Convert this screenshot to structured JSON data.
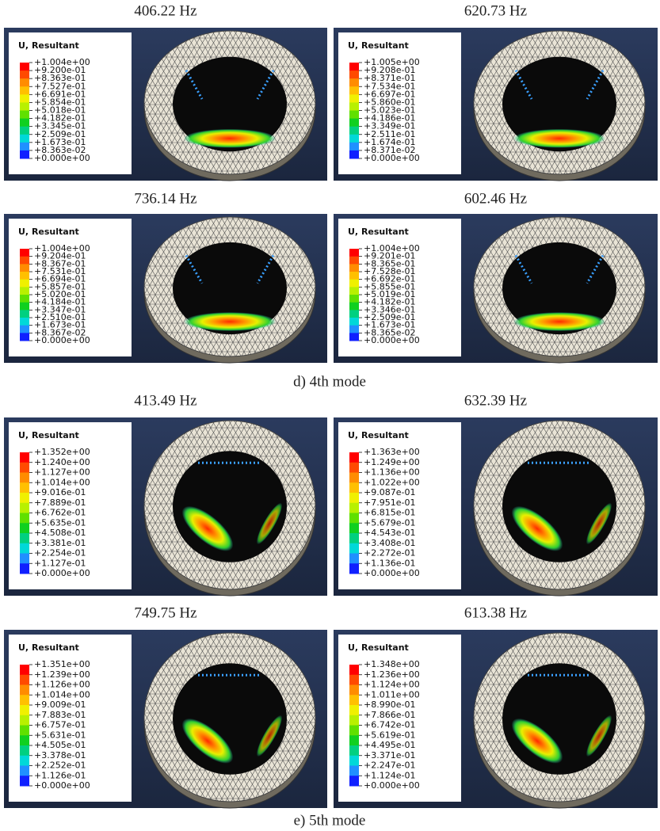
{
  "groups": [
    {
      "caption": "d) 4th mode",
      "panels": [
        {
          "frequency": "406.22 Hz",
          "legend_title": "U, Resultant",
          "legend_labels": [
            "+1.004e+00",
            "+9.200e-01",
            "+8.363e-01",
            "+7.527e-01",
            "+6.691e-01",
            "+5.854e-01",
            "+5.018e-01",
            "+4.182e-01",
            "+3.345e-01",
            "+2.509e-01",
            "+1.673e-01",
            "+8.363e-02",
            "+0.000e+00"
          ]
        },
        {
          "frequency": "620.73 Hz",
          "legend_title": "U, Resultant",
          "legend_labels": [
            "+1.005e+00",
            "+9.208e-01",
            "+8.371e-01",
            "+7.534e-01",
            "+6.697e-01",
            "+5.860e-01",
            "+5.023e-01",
            "+4.186e-01",
            "+3.349e-01",
            "+2.511e-01",
            "+1.674e-01",
            "+8.371e-02",
            "+0.000e+00"
          ]
        },
        {
          "frequency": "736.14 Hz",
          "legend_title": "U, Resultant",
          "legend_labels": [
            "+1.004e+00",
            "+9.204e-01",
            "+8.367e-01",
            "+7.531e-01",
            "+6.694e-01",
            "+5.857e-01",
            "+5.020e-01",
            "+4.184e-01",
            "+3.347e-01",
            "+2.510e-01",
            "+1.673e-01",
            "+8.367e-02",
            "+0.000e+00"
          ]
        },
        {
          "frequency": "602.46 Hz",
          "legend_title": "U, Resultant",
          "legend_labels": [
            "+1.004e+00",
            "+9.201e-01",
            "+8.365e-01",
            "+7.528e-01",
            "+6.692e-01",
            "+5.855e-01",
            "+5.019e-01",
            "+4.182e-01",
            "+3.346e-01",
            "+2.509e-01",
            "+1.673e-01",
            "+8.365e-02",
            "+0.000e+00"
          ]
        }
      ]
    },
    {
      "caption": "e) 5th mode",
      "panels": [
        {
          "frequency": "413.49 Hz",
          "legend_title": "U, Resultant",
          "legend_labels": [
            "+1.352e+00",
            "+1.240e+00",
            "+1.127e+00",
            "+1.014e+00",
            "+9.016e-01",
            "+7.889e-01",
            "+6.762e-01",
            "+5.635e-01",
            "+4.508e-01",
            "+3.381e-01",
            "+2.254e-01",
            "+1.127e-01",
            "+0.000e+00"
          ]
        },
        {
          "frequency": "632.39 Hz",
          "legend_title": "U, Resultant",
          "legend_labels": [
            "+1.363e+00",
            "+1.249e+00",
            "+1.136e+00",
            "+1.022e+00",
            "+9.087e-01",
            "+7.951e-01",
            "+6.815e-01",
            "+5.679e-01",
            "+4.543e-01",
            "+3.408e-01",
            "+2.272e-01",
            "+1.136e-01",
            "+0.000e+00"
          ]
        },
        {
          "frequency": "749.75 Hz",
          "legend_title": "U, Resultant",
          "legend_labels": [
            "+1.351e+00",
            "+1.239e+00",
            "+1.126e+00",
            "+1.014e+00",
            "+9.009e-01",
            "+7.883e-01",
            "+6.757e-01",
            "+5.631e-01",
            "+4.505e-01",
            "+3.378e-01",
            "+2.252e-01",
            "+1.126e-01",
            "+0.000e+00"
          ]
        },
        {
          "frequency": "613.38 Hz",
          "legend_title": "U, Resultant",
          "legend_labels": [
            "+1.348e+00",
            "+1.236e+00",
            "+1.124e+00",
            "+1.011e+00",
            "+8.990e-01",
            "+7.866e-01",
            "+6.742e-01",
            "+5.619e-01",
            "+4.495e-01",
            "+3.371e-01",
            "+2.247e-01",
            "+1.124e-01",
            "+0.000e+00"
          ]
        }
      ]
    }
  ]
}
